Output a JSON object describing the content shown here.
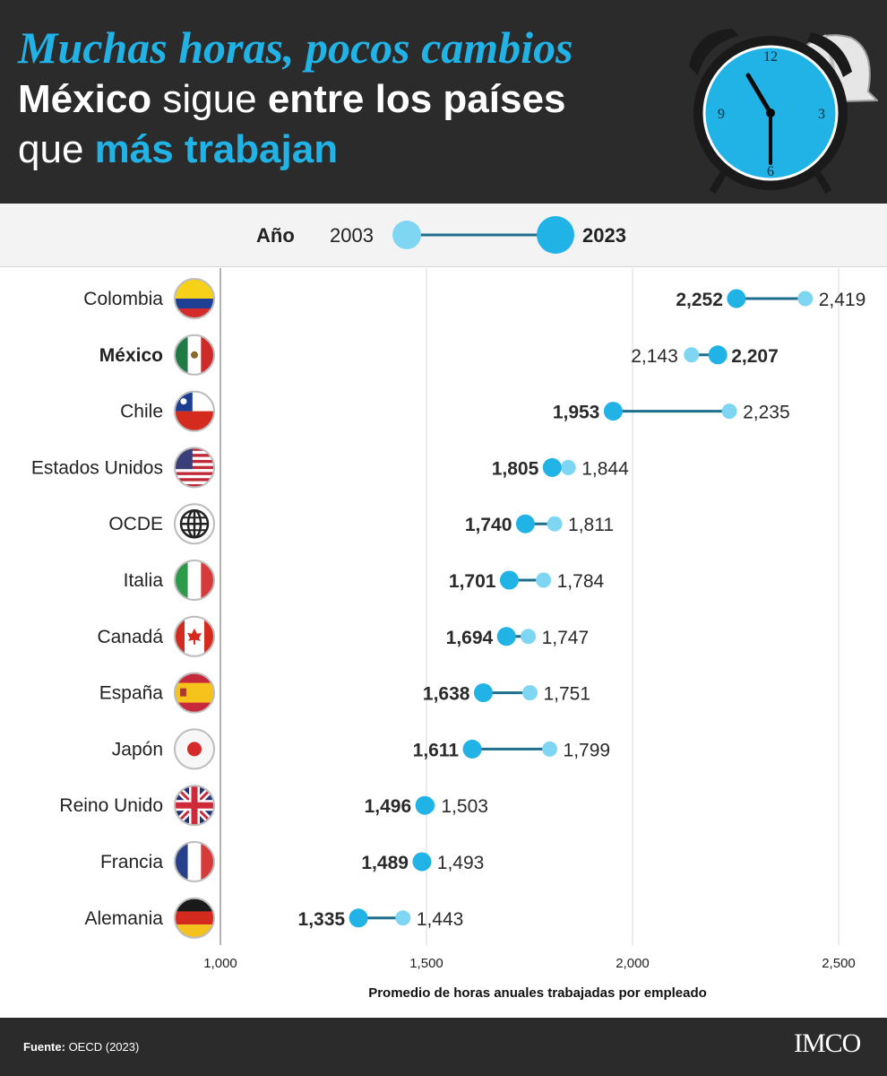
{
  "header": {
    "title_italic": "Muchas horas, pocos cambios",
    "line2_bold1": "México",
    "line2_text": " sigue ",
    "line2_bold2": "entre los países",
    "line3_text": "que ",
    "line3_accent": "más trabajan"
  },
  "legend": {
    "label": "Año",
    "year_a": "2003",
    "year_b": "2023"
  },
  "colors": {
    "dark_bg": "#2b2b2c",
    "accent": "#21b2e6",
    "light_dot": "#7fd6f3",
    "line": "#1d6f8c"
  },
  "chart_data": {
    "type": "dumbbell",
    "xlabel": "Promedio de horas anuales trabajadas por empleado",
    "xlim": [
      1000,
      2500
    ],
    "xticks": [
      1000,
      1500,
      2000,
      2500
    ],
    "xtick_labels": [
      "1,000",
      "1,500",
      "2,000",
      "2,500"
    ],
    "series": [
      {
        "name": "2003"
      },
      {
        "name": "2023"
      }
    ],
    "rows": [
      {
        "country": "Colombia",
        "flag": "colombia-flag-icon",
        "y2003": 2419,
        "y2023": 2252,
        "l2003": "2,419",
        "l2023": "2,252"
      },
      {
        "country": "México",
        "flag": "mexico-flag-icon",
        "y2003": 2143,
        "y2023": 2207,
        "l2003": "2,143",
        "l2023": "2,207",
        "highlight": true
      },
      {
        "country": "Chile",
        "flag": "chile-flag-icon",
        "y2003": 2235,
        "y2023": 1953,
        "l2003": "2,235",
        "l2023": "1,953"
      },
      {
        "country": "Estados Unidos",
        "flag": "usa-flag-icon",
        "y2003": 1844,
        "y2023": 1805,
        "l2003": "1,844",
        "l2023": "1,805"
      },
      {
        "country": "OCDE",
        "flag": "globe-icon",
        "y2003": 1811,
        "y2023": 1740,
        "l2003": "1,811",
        "l2023": "1,740"
      },
      {
        "country": "Italia",
        "flag": "italy-flag-icon",
        "y2003": 1784,
        "y2023": 1701,
        "l2003": "1,784",
        "l2023": "1,701"
      },
      {
        "country": "Canadá",
        "flag": "canada-flag-icon",
        "y2003": 1747,
        "y2023": 1694,
        "l2003": "1,747",
        "l2023": "1,694"
      },
      {
        "country": "España",
        "flag": "spain-flag-icon",
        "y2003": 1751,
        "y2023": 1638,
        "l2003": "1,751",
        "l2023": "1,638"
      },
      {
        "country": "Japón",
        "flag": "japan-flag-icon",
        "y2003": 1799,
        "y2023": 1611,
        "l2003": "1,799",
        "l2023": "1,611"
      },
      {
        "country": "Reino Unido",
        "flag": "uk-flag-icon",
        "y2003": 1503,
        "y2023": 1496,
        "l2003": "1,503",
        "l2023": "1,496"
      },
      {
        "country": "Francia",
        "flag": "france-flag-icon",
        "y2003": 1493,
        "y2023": 1489,
        "l2003": "1,493",
        "l2023": "1,489"
      },
      {
        "country": "Alemania",
        "flag": "germany-flag-icon",
        "y2003": 1443,
        "y2023": 1335,
        "l2003": "1,443",
        "l2023": "1,335"
      }
    ]
  },
  "footer": {
    "source_label": "Fuente:",
    "source_text": " OECD (2023)",
    "logo": "IMCO"
  }
}
